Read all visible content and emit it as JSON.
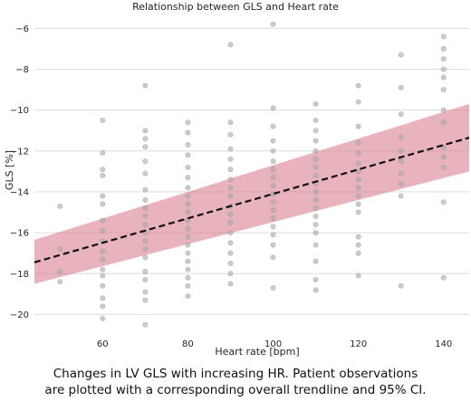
{
  "chart_data": {
    "type": "scatter",
    "title": "Relationship between GLS and Heart rate",
    "xlabel": "Heart rate [bpm]",
    "ylabel": "GLS [%]",
    "xlim": [
      44,
      146
    ],
    "ylim": [
      -21,
      -5.5
    ],
    "xticks": [
      60,
      80,
      100,
      120,
      140
    ],
    "yticks": [
      -20,
      -18,
      -16,
      -14,
      -12,
      -10,
      -8,
      -6
    ],
    "grid": "horizontal",
    "colors": {
      "points": "#a9a9a9",
      "trend": "#111111",
      "ci_band": "#d9808f"
    },
    "trendline": {
      "x": [
        44,
        146
      ],
      "y": [
        -17.45,
        -11.35
      ],
      "style": "dashed"
    },
    "ci_band": {
      "x": [
        44,
        146
      ],
      "lower": [
        -18.5,
        -13.0
      ],
      "upper": [
        -16.35,
        -9.7
      ]
    },
    "points": [
      {
        "x": 50,
        "y": -14.7
      },
      {
        "x": 50,
        "y": -16.8
      },
      {
        "x": 50,
        "y": -17.9
      },
      {
        "x": 50,
        "y": -18.4
      },
      {
        "x": 60,
        "y": -10.5
      },
      {
        "x": 60,
        "y": -12.1
      },
      {
        "x": 60,
        "y": -12.9
      },
      {
        "x": 60,
        "y": -13.2
      },
      {
        "x": 60,
        "y": -14.2
      },
      {
        "x": 60,
        "y": -14.6
      },
      {
        "x": 60,
        "y": -15.4
      },
      {
        "x": 60,
        "y": -15.9
      },
      {
        "x": 60,
        "y": -16.4
      },
      {
        "x": 60,
        "y": -16.9
      },
      {
        "x": 60,
        "y": -17.3
      },
      {
        "x": 60,
        "y": -17.8
      },
      {
        "x": 60,
        "y": -18.1
      },
      {
        "x": 60,
        "y": -18.6
      },
      {
        "x": 60,
        "y": -19.2
      },
      {
        "x": 60,
        "y": -19.6
      },
      {
        "x": 60,
        "y": -20.2
      },
      {
        "x": 70,
        "y": -8.8
      },
      {
        "x": 70,
        "y": -11.0
      },
      {
        "x": 70,
        "y": -11.4
      },
      {
        "x": 70,
        "y": -11.8
      },
      {
        "x": 70,
        "y": -12.5
      },
      {
        "x": 70,
        "y": -13.1
      },
      {
        "x": 70,
        "y": -13.9
      },
      {
        "x": 70,
        "y": -14.4
      },
      {
        "x": 70,
        "y": -14.8
      },
      {
        "x": 70,
        "y": -15.2
      },
      {
        "x": 70,
        "y": -15.6
      },
      {
        "x": 70,
        "y": -16.0
      },
      {
        "x": 70,
        "y": -16.4
      },
      {
        "x": 70,
        "y": -16.8
      },
      {
        "x": 70,
        "y": -17.2
      },
      {
        "x": 70,
        "y": -17.9
      },
      {
        "x": 70,
        "y": -18.3
      },
      {
        "x": 70,
        "y": -18.9
      },
      {
        "x": 70,
        "y": -19.3
      },
      {
        "x": 70,
        "y": -20.5
      },
      {
        "x": 80,
        "y": -10.6
      },
      {
        "x": 80,
        "y": -11.1
      },
      {
        "x": 80,
        "y": -11.7
      },
      {
        "x": 80,
        "y": -12.2
      },
      {
        "x": 80,
        "y": -12.8
      },
      {
        "x": 80,
        "y": -13.3
      },
      {
        "x": 80,
        "y": -13.8
      },
      {
        "x": 80,
        "y": -14.2
      },
      {
        "x": 80,
        "y": -14.6
      },
      {
        "x": 80,
        "y": -15.0
      },
      {
        "x": 80,
        "y": -15.4
      },
      {
        "x": 80,
        "y": -15.8
      },
      {
        "x": 80,
        "y": -16.2
      },
      {
        "x": 80,
        "y": -16.6
      },
      {
        "x": 80,
        "y": -17.0
      },
      {
        "x": 80,
        "y": -17.4
      },
      {
        "x": 80,
        "y": -17.8
      },
      {
        "x": 80,
        "y": -18.2
      },
      {
        "x": 80,
        "y": -18.6
      },
      {
        "x": 80,
        "y": -19.1
      },
      {
        "x": 90,
        "y": -6.8
      },
      {
        "x": 90,
        "y": -10.6
      },
      {
        "x": 90,
        "y": -11.2
      },
      {
        "x": 90,
        "y": -11.9
      },
      {
        "x": 90,
        "y": -12.4
      },
      {
        "x": 90,
        "y": -12.9
      },
      {
        "x": 90,
        "y": -13.4
      },
      {
        "x": 90,
        "y": -13.8
      },
      {
        "x": 90,
        "y": -14.2
      },
      {
        "x": 90,
        "y": -14.7
      },
      {
        "x": 90,
        "y": -15.1
      },
      {
        "x": 90,
        "y": -15.5
      },
      {
        "x": 90,
        "y": -16.0
      },
      {
        "x": 90,
        "y": -16.5
      },
      {
        "x": 90,
        "y": -17.0
      },
      {
        "x": 90,
        "y": -17.5
      },
      {
        "x": 90,
        "y": -18.0
      },
      {
        "x": 90,
        "y": -18.5
      },
      {
        "x": 100,
        "y": -5.8
      },
      {
        "x": 100,
        "y": -9.9
      },
      {
        "x": 100,
        "y": -10.8
      },
      {
        "x": 100,
        "y": -11.5
      },
      {
        "x": 100,
        "y": -12.0
      },
      {
        "x": 100,
        "y": -12.5
      },
      {
        "x": 100,
        "y": -12.9
      },
      {
        "x": 100,
        "y": -13.3
      },
      {
        "x": 100,
        "y": -13.7
      },
      {
        "x": 100,
        "y": -14.1
      },
      {
        "x": 100,
        "y": -14.5
      },
      {
        "x": 100,
        "y": -14.9
      },
      {
        "x": 100,
        "y": -15.3
      },
      {
        "x": 100,
        "y": -15.7
      },
      {
        "x": 100,
        "y": -16.1
      },
      {
        "x": 100,
        "y": -16.6
      },
      {
        "x": 100,
        "y": -17.2
      },
      {
        "x": 100,
        "y": -18.7
      },
      {
        "x": 110,
        "y": -9.7
      },
      {
        "x": 110,
        "y": -10.5
      },
      {
        "x": 110,
        "y": -11.0
      },
      {
        "x": 110,
        "y": -11.5
      },
      {
        "x": 110,
        "y": -12.0
      },
      {
        "x": 110,
        "y": -12.4
      },
      {
        "x": 110,
        "y": -12.8
      },
      {
        "x": 110,
        "y": -13.2
      },
      {
        "x": 110,
        "y": -13.6
      },
      {
        "x": 110,
        "y": -14.0
      },
      {
        "x": 110,
        "y": -14.4
      },
      {
        "x": 110,
        "y": -14.8
      },
      {
        "x": 110,
        "y": -15.2
      },
      {
        "x": 110,
        "y": -15.6
      },
      {
        "x": 110,
        "y": -16.0
      },
      {
        "x": 110,
        "y": -16.6
      },
      {
        "x": 110,
        "y": -17.4
      },
      {
        "x": 110,
        "y": -18.3
      },
      {
        "x": 110,
        "y": -18.8
      },
      {
        "x": 120,
        "y": -8.8
      },
      {
        "x": 120,
        "y": -9.6
      },
      {
        "x": 120,
        "y": -10.8
      },
      {
        "x": 120,
        "y": -11.6
      },
      {
        "x": 120,
        "y": -12.1
      },
      {
        "x": 120,
        "y": -12.6
      },
      {
        "x": 120,
        "y": -13.0
      },
      {
        "x": 120,
        "y": -13.4
      },
      {
        "x": 120,
        "y": -13.8
      },
      {
        "x": 120,
        "y": -14.2
      },
      {
        "x": 120,
        "y": -14.6
      },
      {
        "x": 120,
        "y": -15.0
      },
      {
        "x": 120,
        "y": -16.2
      },
      {
        "x": 120,
        "y": -16.6
      },
      {
        "x": 120,
        "y": -17.0
      },
      {
        "x": 120,
        "y": -18.1
      },
      {
        "x": 130,
        "y": -7.3
      },
      {
        "x": 130,
        "y": -8.9
      },
      {
        "x": 130,
        "y": -10.2
      },
      {
        "x": 130,
        "y": -11.3
      },
      {
        "x": 130,
        "y": -12.0
      },
      {
        "x": 130,
        "y": -12.5
      },
      {
        "x": 130,
        "y": -13.1
      },
      {
        "x": 130,
        "y": -13.6
      },
      {
        "x": 130,
        "y": -14.2
      },
      {
        "x": 130,
        "y": -18.6
      },
      {
        "x": 140,
        "y": -6.4
      },
      {
        "x": 140,
        "y": -7.0
      },
      {
        "x": 140,
        "y": -7.5
      },
      {
        "x": 140,
        "y": -8.0
      },
      {
        "x": 140,
        "y": -8.4
      },
      {
        "x": 140,
        "y": -9.0
      },
      {
        "x": 140,
        "y": -10.0
      },
      {
        "x": 140,
        "y": -10.6
      },
      {
        "x": 140,
        "y": -11.8
      },
      {
        "x": 140,
        "y": -12.3
      },
      {
        "x": 140,
        "y": -12.8
      },
      {
        "x": 140,
        "y": -14.5
      },
      {
        "x": 140,
        "y": -18.2
      }
    ]
  },
  "caption": {
    "line1": "Changes in LV GLS with increasing HR. Patient observations",
    "line2": "are plotted with a corresponding overall trendline and 95% CI."
  }
}
